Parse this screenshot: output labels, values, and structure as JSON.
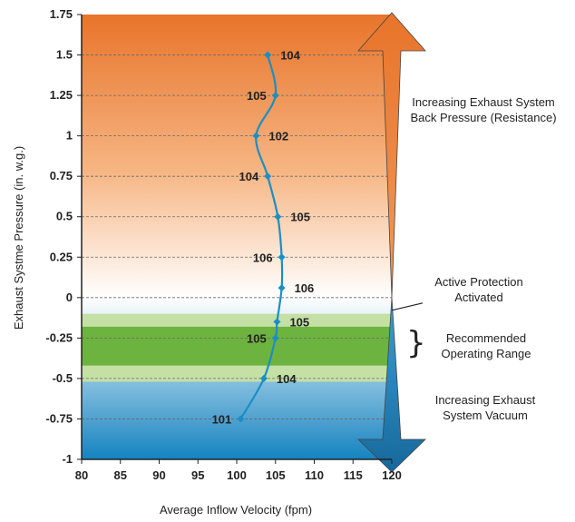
{
  "chart_data": {
    "type": "line",
    "xlabel": "Average Inflow Velocity (fpm)",
    "ylabel": "Exhaust Systme Pressure (in. w.g.)",
    "xlim": [
      80,
      120
    ],
    "ylim": [
      -1,
      1.75
    ],
    "x_ticks": [
      "80",
      "85",
      "90",
      "95",
      "100",
      "105",
      "110",
      "115",
      "120"
    ],
    "y_ticks": [
      "1.75",
      "1.5",
      "1.25",
      "1",
      "0.75",
      "0.5",
      "0.25",
      "0",
      "-0.25",
      "-0.5",
      "-0.75",
      "-1"
    ],
    "y_tick_values": [
      1.75,
      1.5,
      1.25,
      1,
      0.75,
      0.5,
      0.25,
      0,
      -0.25,
      -0.5,
      -0.75,
      -1
    ],
    "y_tick_labels_shown": [
      "1.75",
      "1.5",
      "1.25",
      "1",
      "0.75",
      "0.5",
      "0.25",
      "0",
      "-0.25",
      "-0.5",
      "-0.75",
      "-1"
    ],
    "points": [
      {
        "pressure": 1.5,
        "velocity": 104.0,
        "label": "104"
      },
      {
        "pressure": 1.25,
        "velocity": 105.0,
        "label": "105"
      },
      {
        "pressure": 1.0,
        "velocity": 102.5,
        "label": "102"
      },
      {
        "pressure": 0.75,
        "velocity": 104.0,
        "label": "104"
      },
      {
        "pressure": 0.5,
        "velocity": 105.3,
        "label": "105"
      },
      {
        "pressure": 0.25,
        "velocity": 105.8,
        "label": "106"
      },
      {
        "pressure": 0.06,
        "velocity": 105.8,
        "label": "106"
      },
      {
        "pressure": -0.15,
        "velocity": 105.2,
        "label": "105"
      },
      {
        "pressure": -0.25,
        "velocity": 105.0,
        "label": "105"
      },
      {
        "pressure": -0.5,
        "velocity": 103.5,
        "label": "104"
      },
      {
        "pressure": -0.75,
        "velocity": 100.5,
        "label": "101"
      }
    ],
    "bands": {
      "recommended_inner": [
        -0.42,
        -0.18
      ],
      "recommended_outer": [
        -0.52,
        -0.1
      ]
    },
    "grid": true,
    "colors": {
      "line": "#1a8fc4",
      "marker": "#1a8fc4",
      "top_gradient_dark": "#e8742a",
      "top_gradient_light": "#ffffff",
      "bottom_gradient_dark": "#1583c0",
      "band_inner": "#6db33f",
      "band_outer": "#c5e0a5",
      "arrow_top": "#e8742a",
      "arrow_bottom": "#1a7fba"
    }
  },
  "annotations": {
    "back_pressure": "Increasing Exhaust System Back Pressure (Resistance)",
    "active_protection": "Active Protection Activated",
    "recommended": "Recommended Operating Range",
    "vacuum": "Increasing Exhaust System Vacuum",
    "brace": "}"
  }
}
